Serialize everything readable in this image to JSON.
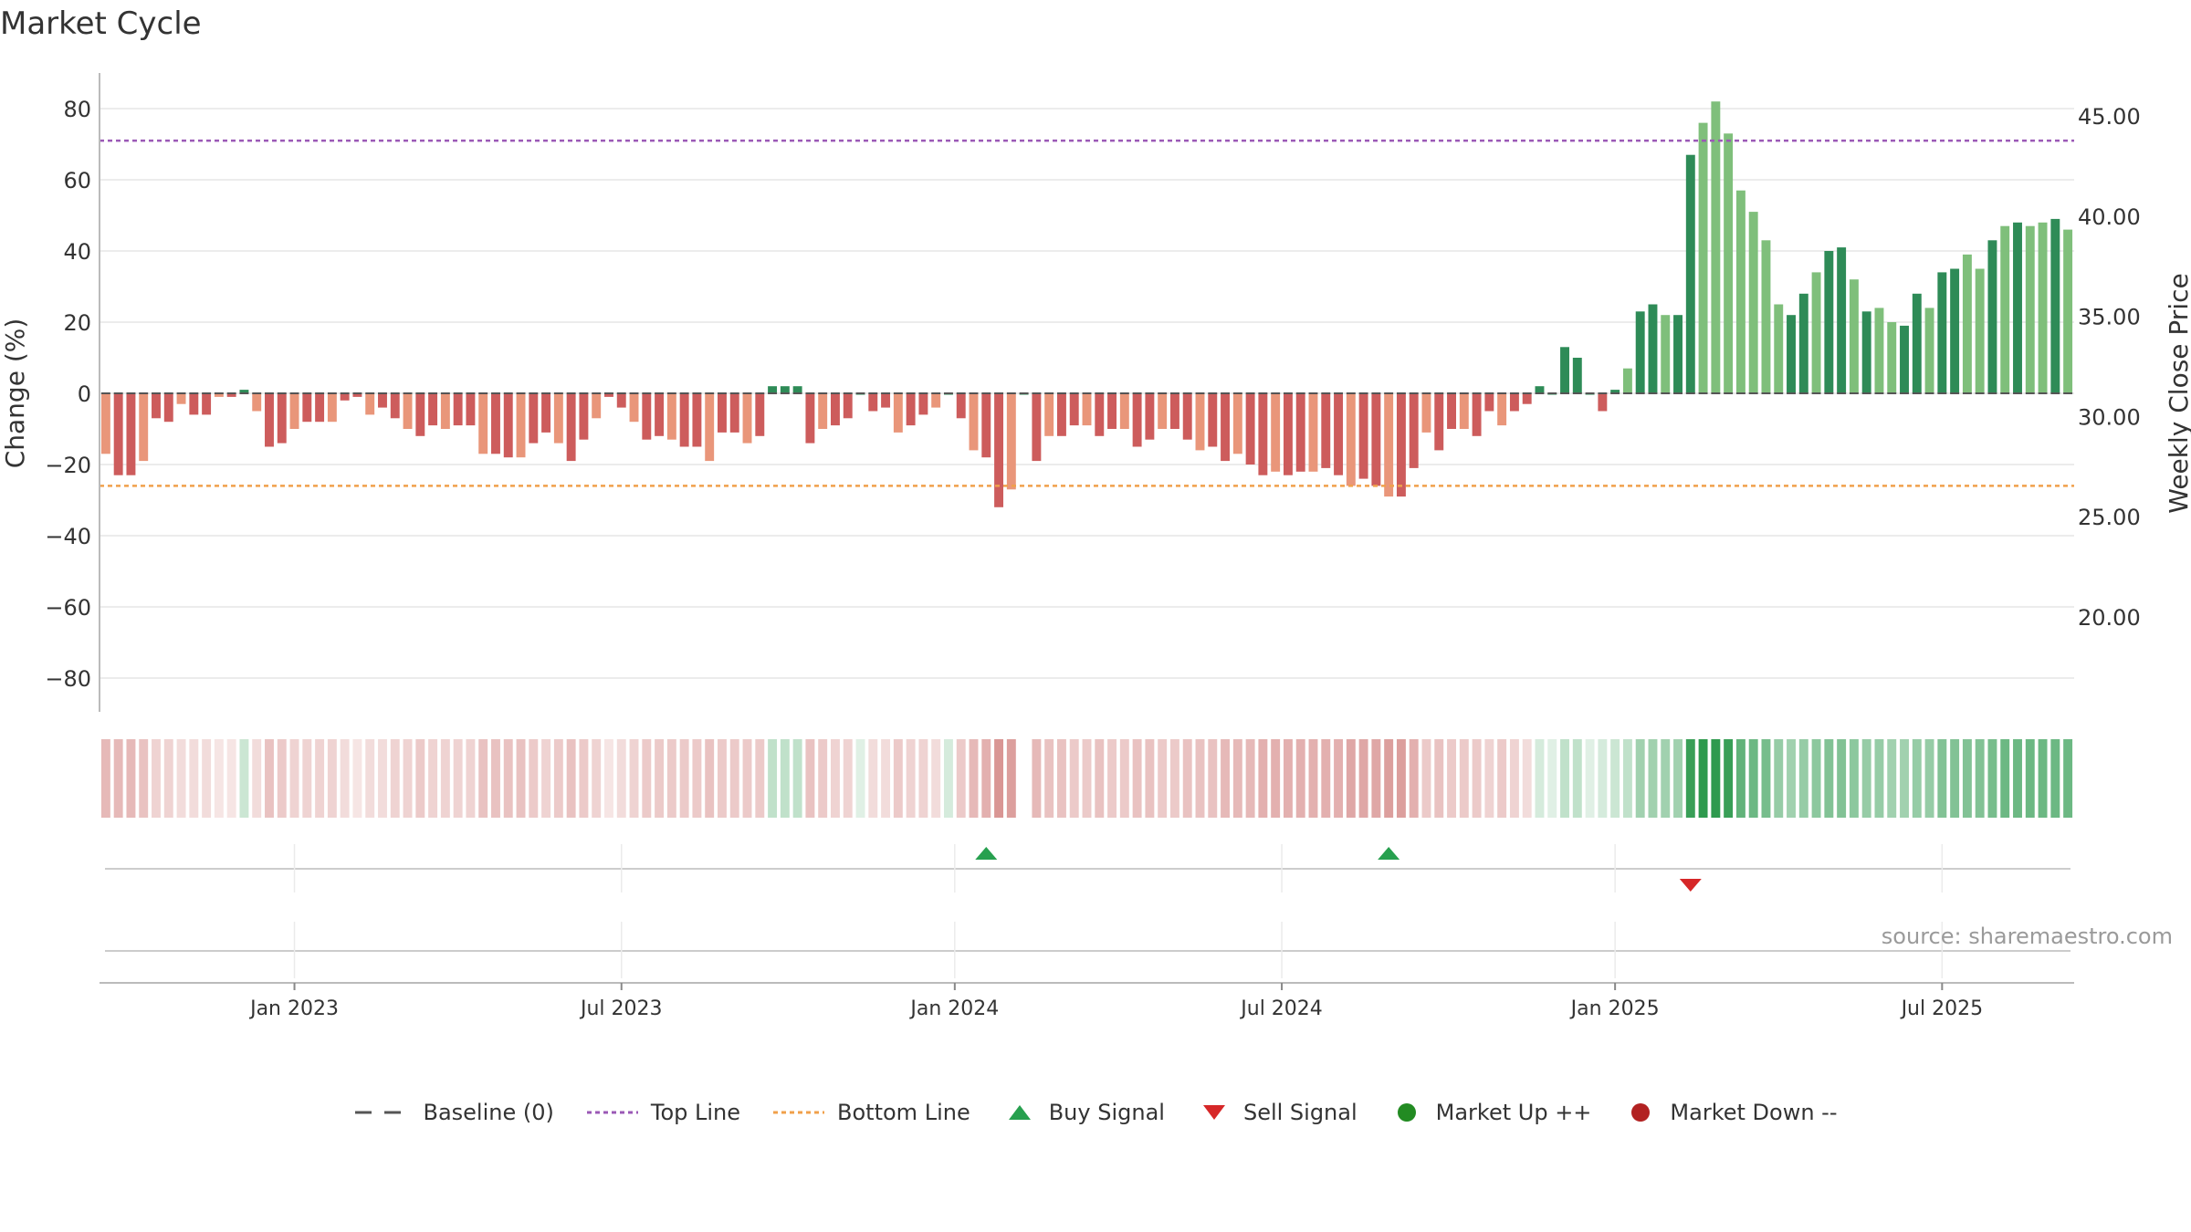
{
  "title": "Market Cycle",
  "source": "source: sharemaestro.com",
  "colors": {
    "dark_green": "#2e8b57",
    "light_green": "#7fbf7b",
    "dark_red": "#cd5c5c",
    "light_red": "#e9967a",
    "top_line": "#9b59b6",
    "bottom_line": "#f0a04b",
    "baseline": "#555555",
    "buy": "#27a04f",
    "sell": "#d62728",
    "market_up": "#228b22",
    "market_down": "#b22222"
  },
  "legend": [
    {
      "label": "Baseline (0)",
      "icon": "dash-line-icon"
    },
    {
      "label": "Top Line",
      "icon": "dotted-purple-line-icon"
    },
    {
      "label": "Bottom Line",
      "icon": "dotted-orange-line-icon"
    },
    {
      "label": "Buy Signal",
      "icon": "triangle-up-icon"
    },
    {
      "label": "Sell Signal",
      "icon": "triangle-down-icon"
    },
    {
      "label": "Market Up ++",
      "icon": "green-dot-icon"
    },
    {
      "label": "Market Down --",
      "icon": "red-dot-icon"
    }
  ],
  "chart_data": {
    "type": "bar",
    "ylabel": "Change (%)",
    "y2label": "Weekly Close Price",
    "ylim": [
      -90,
      90
    ],
    "y_ticks": [
      "80",
      "60",
      "40",
      "20",
      "0",
      "−20",
      "−40",
      "−60",
      "−80"
    ],
    "y_tick_values": [
      80,
      60,
      40,
      20,
      0,
      -20,
      -40,
      -60,
      -80
    ],
    "y2_ticks": [
      "45.00",
      "40.00",
      "35.00",
      "30.00",
      "25.00",
      "20.00"
    ],
    "y2_tick_values": [
      45,
      40,
      35,
      30,
      25,
      20
    ],
    "x_ticks": [
      "Jan 2023",
      "Jul 2023",
      "Jan 2024",
      "Jul 2024",
      "Jan 2025",
      "Jul 2025"
    ],
    "x_tick_weeks": [
      15.5,
      41.5,
      68,
      94,
      120.5,
      146.5
    ],
    "top_line": 71,
    "bottom_line": -26,
    "grid": true,
    "legend_position": "bottom-center",
    "series": [
      {
        "values": [
          -17,
          -23,
          -23,
          -19,
          -7,
          -8,
          -3,
          -6,
          -6,
          -1,
          -1,
          1,
          -5,
          -15,
          -14,
          -10,
          -8,
          -8,
          -8,
          -2,
          -1,
          -6,
          -4,
          -7,
          -10,
          -12,
          -9,
          -10,
          -9,
          -9,
          -17,
          -17,
          -18,
          -18,
          -14,
          -11,
          -14,
          -19,
          -13,
          -7,
          -1,
          -4,
          -8,
          -13,
          -12,
          -13,
          -15,
          -15,
          -19,
          -11,
          -11,
          -14,
          -12,
          2,
          2,
          2,
          -14,
          -10,
          -9,
          -7,
          0,
          -5,
          -4,
          -11,
          -9,
          -6,
          -4,
          0,
          -7,
          -16,
          -18,
          -32,
          -27,
          0,
          -19,
          -12,
          -12,
          -9,
          -9,
          -12,
          -10,
          -10,
          -15,
          -13,
          -10,
          -10,
          -13,
          -16,
          -15,
          -19,
          -17,
          -20,
          -23,
          -22,
          -23,
          -22,
          -22,
          -21,
          -23,
          -26,
          -24,
          -26,
          -29,
          -29,
          -21,
          -11,
          -16,
          -10,
          -10,
          -12,
          -5,
          -9,
          -5,
          -3,
          2,
          0,
          13,
          10,
          0,
          -5,
          1,
          7,
          23,
          25,
          22,
          22,
          67,
          76,
          82,
          73,
          57,
          51,
          43,
          25,
          22,
          28,
          34,
          40,
          41,
          32,
          23,
          24,
          20,
          19,
          28,
          24,
          34,
          35,
          39,
          35,
          43,
          47,
          48,
          47,
          48,
          49,
          46
        ]
      }
    ],
    "weekly_close_price_series": "not drawn (axis only)"
  },
  "heat_strip": {
    "intensities": [
      0.4,
      0.4,
      0.4,
      0.35,
      0.25,
      0.25,
      0.2,
      0.2,
      0.2,
      0.15,
      0.15,
      0.25,
      0.2,
      0.35,
      0.3,
      0.25,
      0.25,
      0.25,
      0.25,
      0.2,
      0.15,
      0.2,
      0.2,
      0.25,
      0.25,
      0.3,
      0.25,
      0.25,
      0.25,
      0.25,
      0.35,
      0.35,
      0.35,
      0.35,
      0.3,
      0.25,
      0.3,
      0.35,
      0.3,
      0.25,
      0.15,
      0.2,
      0.25,
      0.3,
      0.3,
      0.3,
      0.3,
      0.3,
      0.35,
      0.3,
      0.3,
      0.3,
      0.3,
      0.3,
      0.3,
      0.3,
      0.35,
      0.3,
      0.25,
      0.25,
      0.15,
      0.2,
      0.2,
      0.3,
      0.25,
      0.25,
      0.2,
      0.2,
      0.3,
      0.4,
      0.45,
      0.6,
      0.55,
      null,
      0.4,
      0.35,
      0.35,
      0.3,
      0.3,
      0.35,
      0.3,
      0.3,
      0.35,
      0.35,
      0.3,
      0.3,
      0.35,
      0.35,
      0.35,
      0.4,
      0.4,
      0.4,
      0.45,
      0.45,
      0.45,
      0.45,
      0.45,
      0.45,
      0.45,
      0.5,
      0.5,
      0.5,
      0.55,
      0.55,
      0.45,
      0.3,
      0.35,
      0.3,
      0.3,
      0.3,
      0.25,
      0.3,
      0.25,
      0.2,
      0.2,
      0.15,
      0.3,
      0.3,
      0.15,
      0.2,
      0.25,
      0.3,
      0.45,
      0.45,
      0.45,
      0.45,
      0.95,
      1.0,
      1.0,
      0.95,
      0.75,
      0.7,
      0.65,
      0.5,
      0.45,
      0.5,
      0.55,
      0.6,
      0.6,
      0.55,
      0.5,
      0.5,
      0.45,
      0.45,
      0.5,
      0.5,
      0.6,
      0.6,
      0.6,
      0.6,
      0.65,
      0.7,
      0.7,
      0.7,
      0.7,
      0.7,
      0.7
    ],
    "red_indices_end": 113
  },
  "signals": {
    "buy_weeks": [
      70,
      102
    ],
    "sell_weeks": [
      126
    ]
  }
}
